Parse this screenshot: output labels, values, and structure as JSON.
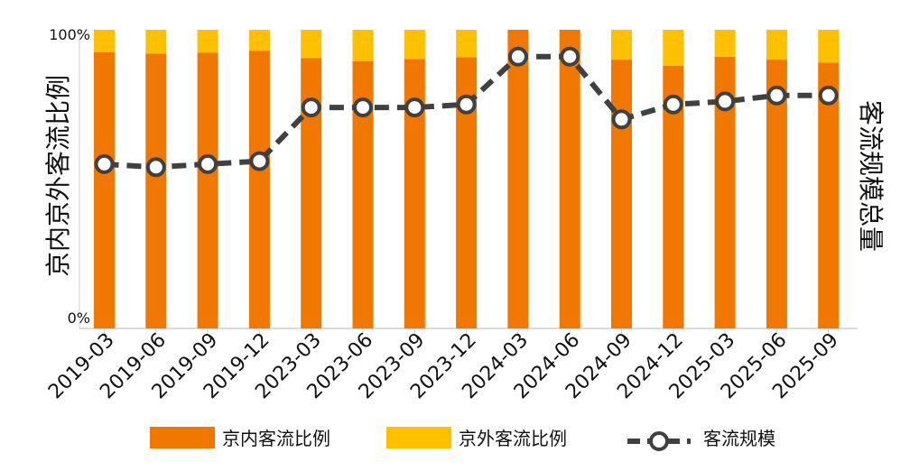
{
  "chart_data": {
    "type": "bar",
    "stacked": true,
    "categories": [
      "2019-03",
      "2019-06",
      "2019-09",
      "2019-12",
      "2023-03",
      "2023-06",
      "2023-09",
      "2023-12",
      "2024-03",
      "2024-06",
      "2024-09",
      "2024-12",
      "2025-03",
      "2025-06",
      "2025-09"
    ],
    "series": [
      {
        "name": "京内客流比例",
        "color": "#F07800",
        "axis": "left",
        "values": [
          92.5,
          92,
          92.3,
          93,
          90.5,
          89.5,
          90.2,
          90.8,
          100,
          100,
          90,
          88,
          91,
          90,
          89
        ]
      },
      {
        "name": "京外客流比例",
        "color": "#FFC000",
        "axis": "left",
        "values": [
          7.5,
          8,
          7.7,
          7,
          9.5,
          10.5,
          9.8,
          9.2,
          0,
          0,
          10,
          12,
          9,
          10,
          11
        ]
      },
      {
        "name": "客流规模",
        "type": "line",
        "color": "#404040",
        "axis": "right",
        "values": [
          55,
          54,
          55,
          56,
          74,
          74,
          74,
          75,
          91,
          91,
          70,
          75,
          76,
          78,
          78
        ]
      }
    ],
    "y_left": {
      "label": "京内京外客流比例",
      "ticks": [
        "0%",
        "100%"
      ],
      "range": [
        0,
        100
      ]
    },
    "y_right": {
      "label": "客流规模总量",
      "range": [
        0,
        100
      ]
    },
    "legend_position": "bottom"
  }
}
